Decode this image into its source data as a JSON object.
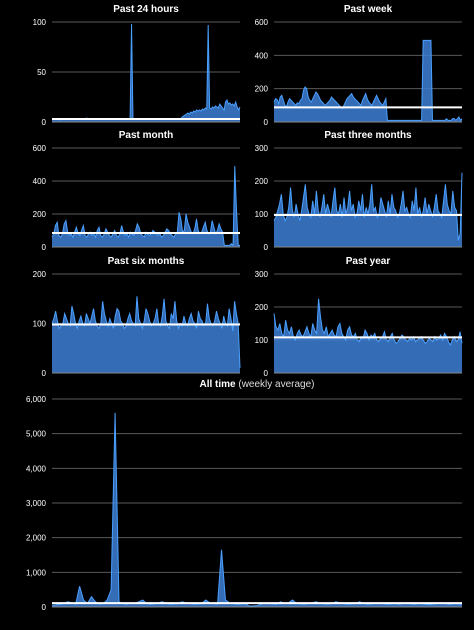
{
  "colors": {
    "background": "#000000",
    "grid": "#5a5a5a",
    "fill": "#3d7fd6",
    "line": "#4aa0ff",
    "average": "#ffffff"
  },
  "chart_data": [
    {
      "type": "area",
      "title": "Past 24 hours",
      "ylim": [
        0,
        100
      ],
      "yticks": [
        "0",
        "50",
        "100"
      ],
      "average": 3,
      "values": [
        3,
        3,
        3,
        3,
        3,
        3,
        2,
        3,
        3,
        3,
        3,
        3,
        3,
        3,
        3,
        3,
        3,
        3,
        3,
        3,
        3,
        3,
        3,
        3,
        4,
        3,
        3,
        3,
        3,
        3,
        3,
        3,
        3,
        3,
        3,
        3,
        3,
        3,
        3,
        3,
        3,
        3,
        3,
        3,
        3,
        3,
        3,
        3,
        3,
        3,
        3,
        3,
        3,
        3,
        3,
        98,
        3,
        3,
        3,
        3,
        3,
        3,
        3,
        3,
        3,
        3,
        3,
        3,
        3,
        3,
        3,
        3,
        3,
        3,
        3,
        3,
        3,
        3,
        3,
        3,
        3,
        3,
        3,
        3,
        3,
        3,
        3,
        3,
        3,
        3,
        5,
        6,
        7,
        8,
        9,
        8,
        10,
        9,
        11,
        10,
        12,
        11,
        12,
        11,
        13,
        12,
        14,
        13,
        97,
        14,
        13,
        15,
        14,
        16,
        15,
        14,
        18,
        16,
        14,
        12,
        20,
        22,
        18,
        19,
        17,
        18,
        16,
        20,
        15,
        12,
        15
      ]
    },
    {
      "type": "area",
      "title": "Past week",
      "ylim": [
        0,
        600
      ],
      "yticks": [
        "0",
        "200",
        "400",
        "600"
      ],
      "average": 88,
      "values": [
        120,
        140,
        135,
        110,
        150,
        160,
        130,
        100,
        90,
        120,
        140,
        130,
        120,
        110,
        100,
        115,
        110,
        130,
        140,
        190,
        210,
        200,
        150,
        130,
        120,
        140,
        160,
        180,
        170,
        150,
        130,
        120,
        110,
        100,
        110,
        120,
        130,
        150,
        140,
        130,
        120,
        110,
        100,
        90,
        80,
        100,
        120,
        140,
        150,
        160,
        170,
        150,
        140,
        130,
        120,
        110,
        100,
        130,
        150,
        170,
        140,
        120,
        110,
        100,
        120,
        140,
        160,
        140,
        120,
        110,
        100,
        120,
        140,
        10,
        10,
        10,
        10,
        10,
        10,
        10,
        10,
        10,
        10,
        10,
        10,
        10,
        10,
        10,
        10,
        10,
        10,
        10,
        10,
        10,
        10,
        10,
        490,
        490,
        490,
        490,
        490,
        490,
        10,
        10,
        10,
        10,
        10,
        10,
        10,
        10,
        10,
        20,
        10,
        10,
        10,
        20,
        20,
        10,
        20,
        30,
        10,
        20
      ]
    },
    {
      "type": "area",
      "title": "Past month",
      "ylim": [
        0,
        600
      ],
      "yticks": [
        "0",
        "200",
        "400",
        "600"
      ],
      "average": 85,
      "values": [
        60,
        80,
        130,
        150,
        70,
        60,
        80,
        140,
        160,
        90,
        70,
        80,
        60,
        90,
        120,
        80,
        70,
        100,
        130,
        70,
        60,
        80,
        90,
        70,
        80,
        60,
        100,
        120,
        70,
        60,
        80,
        110,
        90,
        70,
        60,
        80,
        100,
        70,
        60,
        80,
        130,
        90,
        70,
        80,
        60,
        90,
        80,
        70,
        100,
        140,
        120,
        80,
        70,
        60,
        90,
        80,
        70,
        80,
        100,
        90,
        80,
        70,
        80,
        60,
        70,
        90,
        110,
        100,
        80,
        70,
        60,
        80,
        90,
        210,
        170,
        90,
        100,
        200,
        150,
        120,
        90,
        80,
        110,
        170,
        100,
        80,
        90,
        120,
        150,
        100,
        80,
        90,
        160,
        120,
        80,
        100,
        140,
        110,
        90,
        10,
        10,
        10,
        10,
        20,
        10,
        490,
        220,
        10,
        10
      ]
    },
    {
      "type": "area",
      "title": "Past three months",
      "ylim": [
        0,
        300
      ],
      "yticks": [
        "0",
        "100",
        "200",
        "300"
      ],
      "average": 97,
      "values": [
        80,
        90,
        110,
        130,
        160,
        100,
        80,
        90,
        120,
        180,
        110,
        90,
        130,
        100,
        80,
        110,
        150,
        190,
        120,
        100,
        90,
        140,
        100,
        170,
        110,
        90,
        120,
        160,
        100,
        130,
        110,
        90,
        140,
        180,
        110,
        100,
        130,
        90,
        150,
        100,
        120,
        170,
        110,
        130,
        90,
        100,
        140,
        110,
        160,
        90,
        120,
        100,
        130,
        190,
        110,
        120,
        90,
        100,
        150,
        130,
        110,
        90,
        140,
        100,
        160,
        120,
        110,
        90,
        100,
        130,
        170,
        110,
        120,
        100,
        90,
        140,
        110,
        180,
        100,
        120,
        90,
        110,
        150,
        100,
        130,
        110,
        90,
        120,
        160,
        110,
        100,
        90,
        140,
        190,
        130,
        110,
        100,
        170,
        120,
        110,
        20,
        40,
        225
      ]
    },
    {
      "type": "area",
      "title": "Past six months",
      "ylim": [
        0,
        200
      ],
      "yticks": [
        "0",
        "100",
        "200"
      ],
      "average": 98,
      "values": [
        100,
        110,
        125,
        105,
        90,
        95,
        100,
        120,
        110,
        100,
        95,
        135,
        120,
        100,
        90,
        105,
        115,
        100,
        95,
        120,
        110,
        100,
        115,
        130,
        105,
        95,
        90,
        100,
        145,
        120,
        105,
        95,
        110,
        100,
        90,
        115,
        130,
        125,
        105,
        100,
        90,
        95,
        110,
        120,
        105,
        100,
        95,
        155,
        110,
        100,
        90,
        105,
        130,
        120,
        105,
        95,
        100,
        110,
        130,
        100,
        95,
        115,
        150,
        105,
        95,
        90,
        120,
        110,
        145,
        105,
        90,
        100,
        95,
        115,
        100,
        95,
        110,
        120,
        105,
        100,
        90,
        125,
        110,
        105,
        95,
        100,
        140,
        110,
        100,
        95,
        105,
        125,
        110,
        100,
        90,
        115,
        100,
        95,
        130,
        110,
        85,
        145,
        120,
        100,
        10
      ]
    },
    {
      "type": "area",
      "title": "Past year",
      "ylim": [
        0,
        300
      ],
      "yticks": [
        "0",
        "100",
        "200",
        "300"
      ],
      "average": 108,
      "values": [
        180,
        140,
        130,
        150,
        120,
        110,
        160,
        130,
        120,
        140,
        110,
        100,
        120,
        130,
        115,
        110,
        125,
        140,
        120,
        110,
        150,
        130,
        120,
        225,
        170,
        130,
        120,
        140,
        110,
        120,
        130,
        115,
        110,
        140,
        150,
        120,
        110,
        100,
        130,
        140,
        115,
        110,
        120,
        100,
        95,
        110,
        105,
        130,
        120,
        100,
        115,
        110,
        120,
        100,
        95,
        105,
        110,
        125,
        100,
        95,
        110,
        120,
        100,
        90,
        95,
        105,
        115,
        110,
        100,
        95,
        105,
        100,
        110,
        95,
        100,
        105,
        110,
        100,
        90,
        95,
        105,
        100,
        95,
        110,
        100,
        105,
        115,
        100,
        120,
        110,
        95,
        85,
        100,
        110,
        95,
        100,
        125,
        90
      ]
    },
    {
      "type": "area",
      "title": "All time",
      "subtitle": "(weekly average)",
      "ylim": [
        0,
        6000
      ],
      "yticks": [
        "0",
        "1,000",
        "2,000",
        "3,000",
        "4,000",
        "5,000",
        "6,000"
      ],
      "average": 110,
      "values": [
        50,
        60,
        80,
        100,
        150,
        120,
        80,
        600,
        200,
        100,
        300,
        150,
        80,
        100,
        200,
        500,
        5600,
        150,
        100,
        80,
        120,
        100,
        150,
        200,
        100,
        80,
        90,
        120,
        150,
        100,
        80,
        90,
        100,
        150,
        120,
        100,
        80,
        90,
        100,
        200,
        120,
        100,
        80,
        1650,
        200,
        120,
        100,
        80,
        90,
        100,
        30,
        30,
        40,
        80,
        120,
        100,
        90,
        80,
        150,
        100,
        120,
        200,
        100,
        90,
        80,
        100,
        120,
        150,
        100,
        90,
        80,
        100,
        150,
        120,
        100,
        80,
        90,
        100,
        150,
        100,
        80,
        90,
        100,
        120,
        100,
        80,
        90,
        100,
        80,
        100,
        120,
        90,
        80,
        100,
        90,
        80,
        70,
        90,
        100,
        120,
        90,
        80,
        100,
        90,
        80
      ]
    }
  ]
}
